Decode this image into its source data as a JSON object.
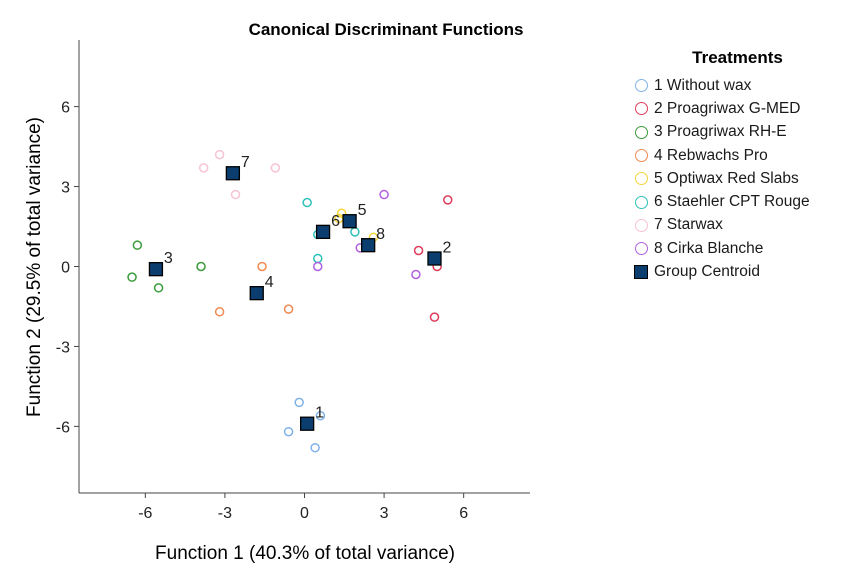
{
  "chart_data": {
    "type": "scatter",
    "title": "Canonical Discriminant Functions",
    "xlabel": "Function 1 (40.3% of total variance)",
    "ylabel": "Function 2 (29.5% of total variance)",
    "xlim": [
      -8.5,
      8.5
    ],
    "ylim": [
      -8.5,
      8.5
    ],
    "xticks": [
      -6,
      -3,
      0,
      3,
      6
    ],
    "yticks": [
      6,
      3,
      0,
      -3,
      -6
    ],
    "grid": false,
    "legend_position": "right",
    "legend_title": "Treatments",
    "series": [
      {
        "name": "1 Without wax",
        "color": "#7fb2e8",
        "points": [
          [
            -0.2,
            -5.1
          ],
          [
            0.6,
            -5.6
          ],
          [
            -0.6,
            -6.2
          ],
          [
            0.4,
            -6.8
          ]
        ]
      },
      {
        "name": "2 Proagriwax G-MED",
        "color": "#e03c5a",
        "points": [
          [
            5.4,
            2.5
          ],
          [
            4.3,
            0.6
          ],
          [
            5.0,
            0.0
          ],
          [
            4.9,
            -1.9
          ]
        ]
      },
      {
        "name": "3 Proagriwax RH-E",
        "color": "#3a9a3a",
        "points": [
          [
            -6.3,
            0.8
          ],
          [
            -3.9,
            0.0
          ],
          [
            -6.5,
            -0.4
          ],
          [
            -5.5,
            -0.8
          ]
        ]
      },
      {
        "name": "4 Rebwachs Pro",
        "color": "#f08a50",
        "points": [
          [
            -1.6,
            0.0
          ],
          [
            -3.2,
            -1.7
          ],
          [
            -0.6,
            -1.6
          ]
        ]
      },
      {
        "name": "5 Optiwax Red Slabs",
        "color": "#f3d53a",
        "points": [
          [
            1.4,
            2.0
          ],
          [
            1.3,
            1.8
          ],
          [
            2.6,
            1.1
          ]
        ]
      },
      {
        "name": "6 Staehler CPT Rouge",
        "color": "#2fc0b8",
        "points": [
          [
            0.1,
            2.4
          ],
          [
            0.5,
            1.2
          ],
          [
            1.9,
            1.3
          ],
          [
            0.5,
            0.3
          ]
        ]
      },
      {
        "name": "7 Starwax",
        "color": "#f6c2d6",
        "points": [
          [
            -3.2,
            4.2
          ],
          [
            -3.8,
            3.7
          ],
          [
            -1.1,
            3.7
          ],
          [
            -2.6,
            2.7
          ]
        ]
      },
      {
        "name": "8 Cirka Blanche",
        "color": "#b060e0",
        "points": [
          [
            3.0,
            2.7
          ],
          [
            2.1,
            0.7
          ],
          [
            0.5,
            0.0
          ],
          [
            4.2,
            -0.3
          ]
        ]
      }
    ],
    "centroids": {
      "name": "Group Centroid",
      "color": "#0b3d6e",
      "points": [
        {
          "label": "1",
          "x": 0.1,
          "y": -5.9
        },
        {
          "label": "2",
          "x": 4.9,
          "y": 0.3
        },
        {
          "label": "3",
          "x": -5.6,
          "y": -0.1
        },
        {
          "label": "4",
          "x": -1.8,
          "y": -1.0
        },
        {
          "label": "5",
          "x": 1.7,
          "y": 1.7
        },
        {
          "label": "6",
          "x": 0.7,
          "y": 1.3
        },
        {
          "label": "7",
          "x": -2.7,
          "y": 3.5
        },
        {
          "label": "8",
          "x": 2.4,
          "y": 0.8
        }
      ]
    }
  }
}
